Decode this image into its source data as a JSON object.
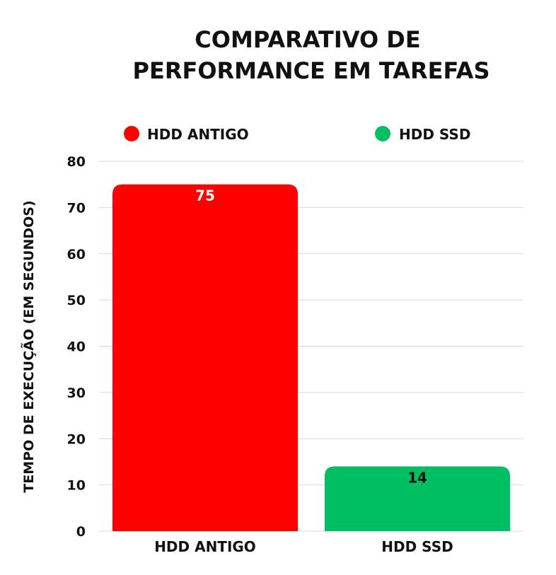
{
  "chart_data": {
    "type": "bar",
    "title_lines": [
      "COMPARATIVO DE",
      "PERFORMANCE EM TAREFAS"
    ],
    "xlabel": "",
    "ylabel": "TEMPO DE EXECUÇÃO (EM SEGUNDOS)",
    "categories": [
      "HDD ANTIGO",
      "HDD SSD"
    ],
    "values": [
      75,
      14
    ],
    "value_labels": [
      "75",
      "14"
    ],
    "colors": [
      "#ff0000",
      "#00bf63"
    ],
    "data_label_colors": [
      "#ffffff",
      "#111111"
    ],
    "legend": {
      "placement": "top",
      "entries": [
        {
          "label": "HDD ANTIGO",
          "color": "#ff0000"
        },
        {
          "label": "HDD SSD",
          "color": "#00bf63"
        }
      ]
    },
    "ylim": [
      0,
      80
    ],
    "yticks": [
      0,
      10,
      20,
      30,
      40,
      50,
      60,
      70,
      80
    ],
    "grid": true
  }
}
